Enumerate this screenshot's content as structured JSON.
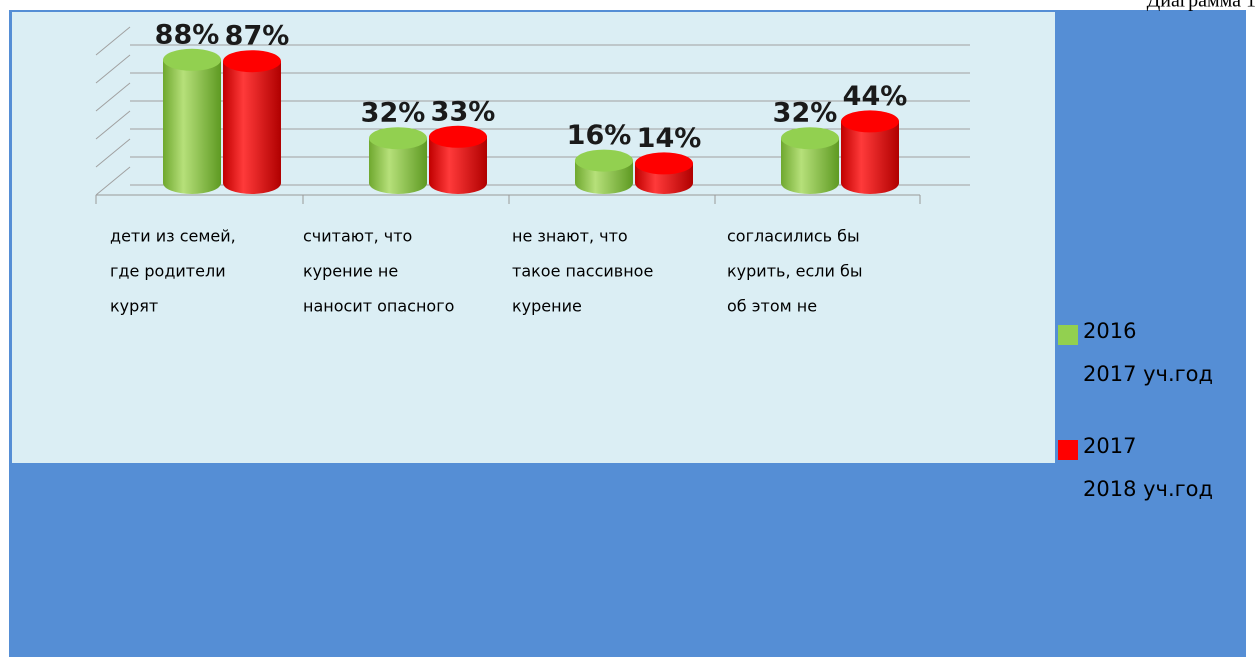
{
  "caption": "Диаграмма 1",
  "chart_data": {
    "type": "bar3d",
    "categories": [
      [
        "дети из семей,",
        "где родители",
        "курят"
      ],
      [
        "считают, что",
        "курение не",
        "наносит опасного"
      ],
      [
        "не знают, что",
        "такое пассивное",
        "курение"
      ],
      [
        "согласились бы",
        "курить, если бы",
        "об этом не"
      ]
    ],
    "series": [
      {
        "name": [
          "2016",
          "2017 уч.год"
        ],
        "color": "#92d050",
        "values": [
          88,
          32,
          16,
          32
        ],
        "value_labels": [
          "88%",
          "32%",
          "16%",
          "32%"
        ]
      },
      {
        "name": [
          "2017",
          "2018 уч.год"
        ],
        "color": "#ff0000",
        "values": [
          87,
          33,
          14,
          44
        ],
        "value_labels": [
          "87%",
          "33%",
          "14%",
          "44%"
        ]
      }
    ],
    "ylim": [
      0,
      100
    ],
    "grid_lines": [
      0,
      20,
      40,
      60,
      80,
      100
    ],
    "grid": true
  }
}
